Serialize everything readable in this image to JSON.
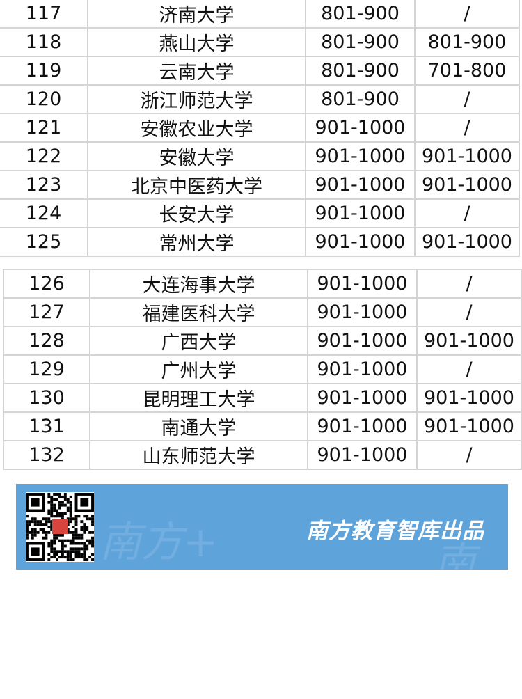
{
  "table_top": [
    {
      "rank": "117",
      "name": "济南大学",
      "col3": "801-900",
      "col4": "/"
    },
    {
      "rank": "118",
      "name": "燕山大学",
      "col3": "801-900",
      "col4": "801-900"
    },
    {
      "rank": "119",
      "name": "云南大学",
      "col3": "801-900",
      "col4": "701-800"
    },
    {
      "rank": "120",
      "name": "浙江师范大学",
      "col3": "801-900",
      "col4": "/"
    },
    {
      "rank": "121",
      "name": "安徽农业大学",
      "col3": "901-1000",
      "col4": "/"
    },
    {
      "rank": "122",
      "name": "安徽大学",
      "col3": "901-1000",
      "col4": "901-1000"
    },
    {
      "rank": "123",
      "name": "北京中医药大学",
      "col3": "901-1000",
      "col4": "901-1000"
    },
    {
      "rank": "124",
      "name": "长安大学",
      "col3": "901-1000",
      "col4": "/"
    },
    {
      "rank": "125",
      "name": "常州大学",
      "col3": "901-1000",
      "col4": "901-1000"
    }
  ],
  "table_bottom": [
    {
      "rank": "126",
      "name": "大连海事大学",
      "col3": "901-1000",
      "col4": "/"
    },
    {
      "rank": "127",
      "name": "福建医科大学",
      "col3": "901-1000",
      "col4": "/"
    },
    {
      "rank": "128",
      "name": "广西大学",
      "col3": "901-1000",
      "col4": "901-1000"
    },
    {
      "rank": "129",
      "name": "广州大学",
      "col3": "901-1000",
      "col4": "/"
    },
    {
      "rank": "130",
      "name": "昆明理工大学",
      "col3": "901-1000",
      "col4": "901-1000"
    },
    {
      "rank": "131",
      "name": "南通大学",
      "col3": "901-1000",
      "col4": "901-1000"
    },
    {
      "rank": "132",
      "name": "山东师范大学",
      "col3": "901-1000",
      "col4": "/"
    }
  ],
  "banner": {
    "text": "南方教育智库出品",
    "watermark": "南方+",
    "color": "#5fa3db"
  }
}
